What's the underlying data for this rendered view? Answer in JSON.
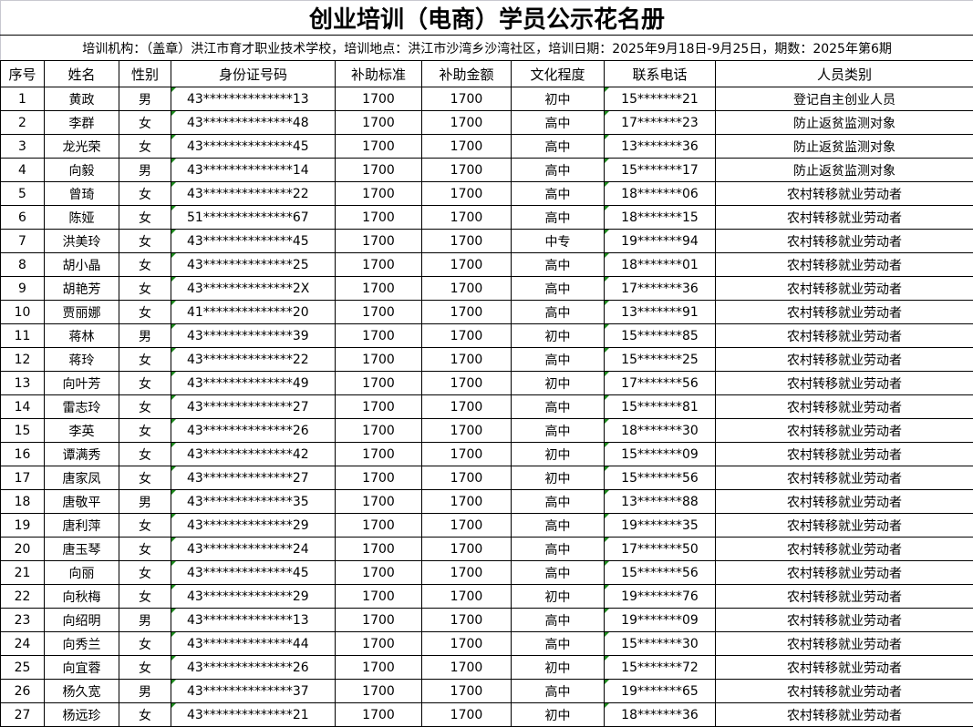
{
  "title": "创业培训（电商）学员公示花名册",
  "subtitle": "培训机构：（盖章）洪江市育才职业技术学校，培训地点：洪江市沙湾乡沙湾社区，培训日期：2025年9月18日-9月25日，期数：2025年第6期",
  "headers": [
    "序号",
    "姓名",
    "性别",
    "身份证号码",
    "补助标准",
    "补助金额",
    "文化程度",
    "联系电话",
    "人员类别"
  ],
  "rows": [
    [
      "1",
      "黄政",
      "男",
      "43**************13",
      "1700",
      "1700",
      "初中",
      "15*******21",
      "登记自主创业人员"
    ],
    [
      "2",
      "李群",
      "女",
      "43**************48",
      "1700",
      "1700",
      "高中",
      "17*******23",
      "防止返贫监测对象"
    ],
    [
      "3",
      "龙光荣",
      "女",
      "43**************45",
      "1700",
      "1700",
      "高中",
      "13*******36",
      "防止返贫监测对象"
    ],
    [
      "4",
      "向毅",
      "男",
      "43**************14",
      "1700",
      "1700",
      "高中",
      "15*******17",
      "防止返贫监测对象"
    ],
    [
      "5",
      "曾琦",
      "女",
      "43**************22",
      "1700",
      "1700",
      "高中",
      "18*******06",
      "农村转移就业劳动者"
    ],
    [
      "6",
      "陈娅",
      "女",
      "51**************67",
      "1700",
      "1700",
      "高中",
      "18*******15",
      "农村转移就业劳动者"
    ],
    [
      "7",
      "洪美玲",
      "女",
      "43**************45",
      "1700",
      "1700",
      "中专",
      "19*******94",
      "农村转移就业劳动者"
    ],
    [
      "8",
      "胡小晶",
      "女",
      "43**************25",
      "1700",
      "1700",
      "高中",
      "18*******01",
      "农村转移就业劳动者"
    ],
    [
      "9",
      "胡艳芳",
      "女",
      "43**************2X",
      "1700",
      "1700",
      "高中",
      "17*******36",
      "农村转移就业劳动者"
    ],
    [
      "10",
      "贾丽娜",
      "女",
      "41**************20",
      "1700",
      "1700",
      "高中",
      "13*******91",
      "农村转移就业劳动者"
    ],
    [
      "11",
      "蒋林",
      "男",
      "43**************39",
      "1700",
      "1700",
      "初中",
      "15*******85",
      "农村转移就业劳动者"
    ],
    [
      "12",
      "蒋玲",
      "女",
      "43**************22",
      "1700",
      "1700",
      "高中",
      "15*******25",
      "农村转移就业劳动者"
    ],
    [
      "13",
      "向叶芳",
      "女",
      "43**************49",
      "1700",
      "1700",
      "初中",
      "17*******56",
      "农村转移就业劳动者"
    ],
    [
      "14",
      "雷志玲",
      "女",
      "43**************27",
      "1700",
      "1700",
      "高中",
      "15*******81",
      "农村转移就业劳动者"
    ],
    [
      "15",
      "李英",
      "女",
      "43**************26",
      "1700",
      "1700",
      "高中",
      "18*******30",
      "农村转移就业劳动者"
    ],
    [
      "16",
      "谭满秀",
      "女",
      "43**************42",
      "1700",
      "1700",
      "初中",
      "15*******09",
      "农村转移就业劳动者"
    ],
    [
      "17",
      "唐家凤",
      "女",
      "43**************27",
      "1700",
      "1700",
      "初中",
      "15*******56",
      "农村转移就业劳动者"
    ],
    [
      "18",
      "唐敬平",
      "男",
      "43**************35",
      "1700",
      "1700",
      "高中",
      "13*******88",
      "农村转移就业劳动者"
    ],
    [
      "19",
      "唐利萍",
      "女",
      "43**************29",
      "1700",
      "1700",
      "高中",
      "19*******35",
      "农村转移就业劳动者"
    ],
    [
      "20",
      "唐玉琴",
      "女",
      "43**************24",
      "1700",
      "1700",
      "高中",
      "17*******50",
      "农村转移就业劳动者"
    ],
    [
      "21",
      "向丽",
      "女",
      "43**************45",
      "1700",
      "1700",
      "高中",
      "15*******56",
      "农村转移就业劳动者"
    ],
    [
      "22",
      "向秋梅",
      "女",
      "43**************29",
      "1700",
      "1700",
      "初中",
      "19*******76",
      "农村转移就业劳动者"
    ],
    [
      "23",
      "向绍明",
      "男",
      "43**************13",
      "1700",
      "1700",
      "高中",
      "19*******09",
      "农村转移就业劳动者"
    ],
    [
      "24",
      "向秀兰",
      "女",
      "43**************44",
      "1700",
      "1700",
      "高中",
      "15*******30",
      "农村转移就业劳动者"
    ],
    [
      "25",
      "向宜蓉",
      "女",
      "43**************26",
      "1700",
      "1700",
      "初中",
      "15*******72",
      "农村转移就业劳动者"
    ],
    [
      "26",
      "杨久宽",
      "男",
      "43**************37",
      "1700",
      "1700",
      "高中",
      "19*******65",
      "农村转移就业劳动者"
    ],
    [
      "27",
      "杨远珍",
      "女",
      "43**************21",
      "1700",
      "1700",
      "初中",
      "18*******36",
      "农村转移就业劳动者"
    ]
  ],
  "colors": {
    "text_marker": "#1e8a1e",
    "border": "#000000"
  }
}
